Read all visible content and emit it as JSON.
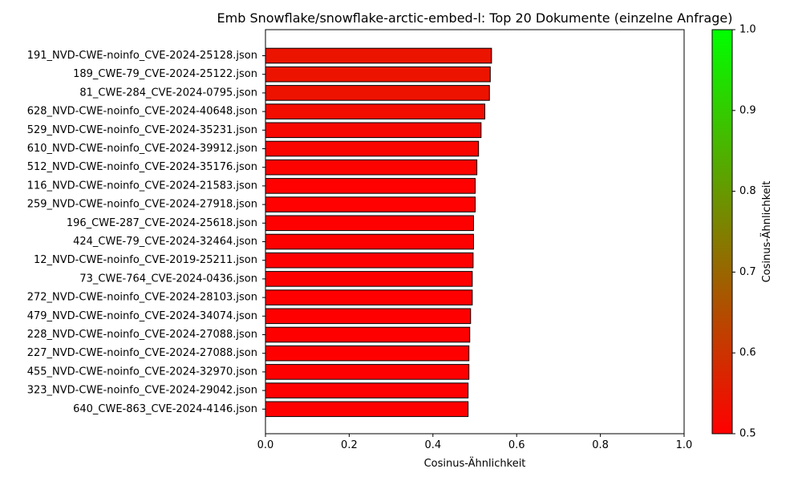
{
  "chart_data": {
    "type": "bar",
    "orientation": "horizontal",
    "title": "Emb Snowflake/snowflake-arctic-embed-l: Top 20 Dokumente (einzelne Anfrage)",
    "xlabel": "Cosinus-Ähnlichkeit",
    "ylabel": "",
    "xlim": [
      0,
      1.0
    ],
    "xticks": [
      "0.0",
      "0.2",
      "0.4",
      "0.6",
      "0.8",
      "1.0"
    ],
    "categories": [
      "191_NVD-CWE-noinfo_CVE-2024-25128.json",
      "189_CWE-79_CVE-2024-25122.json",
      "81_CWE-284_CVE-2024-0795.json",
      "628_NVD-CWE-noinfo_CVE-2024-40648.json",
      "529_NVD-CWE-noinfo_CVE-2024-35231.json",
      "610_NVD-CWE-noinfo_CVE-2024-39912.json",
      "512_NVD-CWE-noinfo_CVE-2024-35176.json",
      "116_NVD-CWE-noinfo_CVE-2024-21583.json",
      "259_NVD-CWE-noinfo_CVE-2024-27918.json",
      "196_CWE-287_CVE-2024-25618.json",
      "424_CWE-79_CVE-2024-32464.json",
      "12_NVD-CWE-noinfo_CVE-2019-25211.json",
      "73_CWE-764_CVE-2024-0436.json",
      "272_NVD-CWE-noinfo_CVE-2024-28103.json",
      "479_NVD-CWE-noinfo_CVE-2024-34074.json",
      "228_NVD-CWE-noinfo_CVE-2024-27088.json",
      "227_NVD-CWE-noinfo_CVE-2024-27088.json",
      "455_NVD-CWE-noinfo_CVE-2024-32970.json",
      "323_NVD-CWE-noinfo_CVE-2024-29042.json",
      "640_CWE-863_CVE-2024-4146.json"
    ],
    "values": [
      0.54,
      0.537,
      0.535,
      0.524,
      0.515,
      0.509,
      0.505,
      0.501,
      0.501,
      0.497,
      0.497,
      0.496,
      0.494,
      0.494,
      0.49,
      0.488,
      0.486,
      0.486,
      0.484,
      0.484
    ],
    "grid": false,
    "bar_edge_color": "#000000",
    "colorbar": {
      "label": "Cosinus-Ähnlichkeit",
      "range": [
        0.5,
        1.0
      ],
      "ticks": [
        "0.5",
        "0.6",
        "0.7",
        "0.8",
        "0.9",
        "1.0"
      ],
      "color_low": "#ff0000",
      "color_high": "#00ff00"
    }
  }
}
